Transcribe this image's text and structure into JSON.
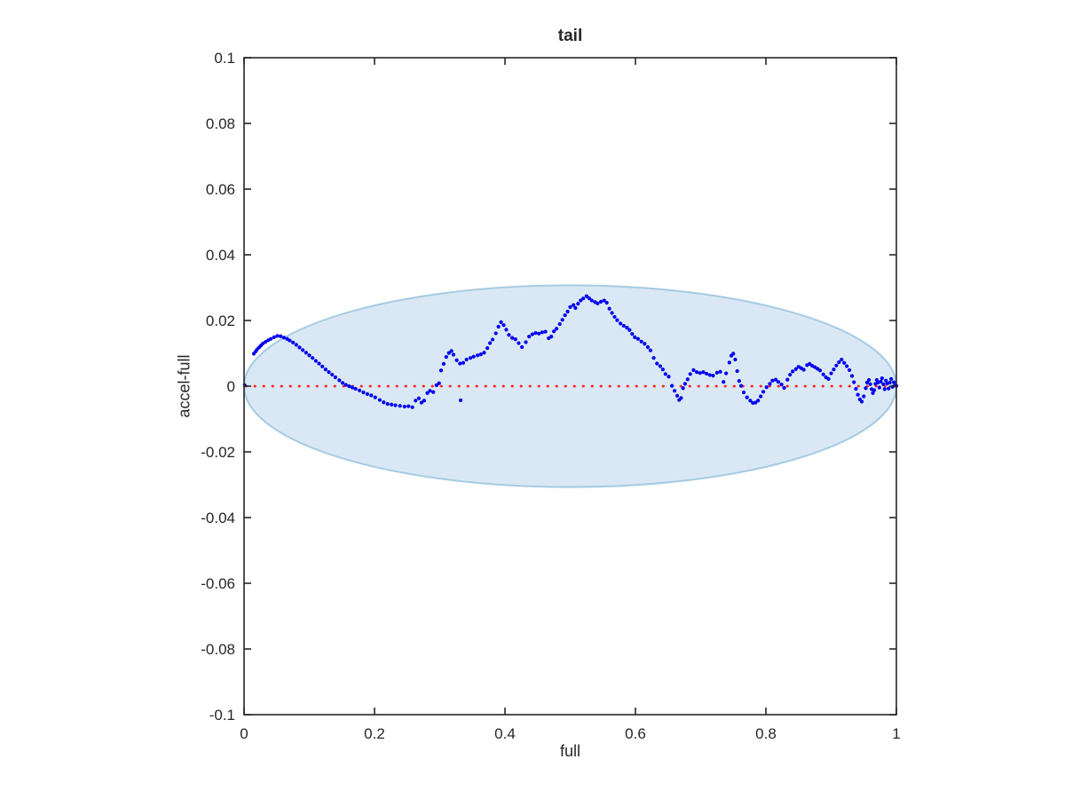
{
  "chart_data": {
    "type": "scatter",
    "title": "tail",
    "xlabel": "full",
    "ylabel": "accel-full",
    "xlim": [
      0,
      1
    ],
    "ylim": [
      -0.1,
      0.1
    ],
    "grid": false,
    "box": true,
    "axis_color": "#262626",
    "legend_position": "none",
    "xticks": {
      "values": [
        0,
        0.2,
        0.4,
        0.6,
        0.8,
        1
      ],
      "labels": [
        "0",
        "0.2",
        "0.4",
        "0.6",
        "0.8",
        "1"
      ]
    },
    "yticks": {
      "values": [
        0.1,
        0.08,
        0.06,
        0.04,
        0.02,
        0,
        -0.02,
        -0.04,
        -0.06,
        -0.08,
        -0.1
      ],
      "labels": [
        "0.1",
        "0.08",
        "0.06",
        "0.04",
        "0.02",
        "0",
        "-0.02",
        "-0.04",
        "-0.06",
        "-0.08",
        "-0.1"
      ]
    },
    "ellipse": {
      "cx": 0.5,
      "cy": 0,
      "rx": 0.5,
      "ry": 0.0307,
      "fill": "#d9e8f4",
      "stroke": "#a6cbe3",
      "stroke_width": 2
    },
    "zero_line": {
      "y": 0,
      "color": "#ff2222",
      "style": "dotted"
    },
    "series": [
      {
        "name": "accel-full",
        "marker": "point",
        "color": "#0000f0",
        "points": [
          [
            0.001,
            0.0003
          ],
          [
            0.015,
            0.0099
          ],
          [
            0.018,
            0.0106
          ],
          [
            0.02,
            0.0112
          ],
          [
            0.023,
            0.0118
          ],
          [
            0.026,
            0.0124
          ],
          [
            0.029,
            0.013
          ],
          [
            0.033,
            0.0135
          ],
          [
            0.037,
            0.014
          ],
          [
            0.041,
            0.0144
          ],
          [
            0.046,
            0.0149
          ],
          [
            0.051,
            0.0153
          ],
          [
            0.056,
            0.0152
          ],
          [
            0.061,
            0.0148
          ],
          [
            0.066,
            0.0144
          ],
          [
            0.07,
            0.0139
          ],
          [
            0.075,
            0.0133
          ],
          [
            0.08,
            0.0126
          ],
          [
            0.085,
            0.0118
          ],
          [
            0.09,
            0.011
          ],
          [
            0.095,
            0.0102
          ],
          [
            0.1,
            0.0094
          ],
          [
            0.105,
            0.0086
          ],
          [
            0.11,
            0.0077
          ],
          [
            0.115,
            0.0069
          ],
          [
            0.12,
            0.006
          ],
          [
            0.125,
            0.0051
          ],
          [
            0.13,
            0.0043
          ],
          [
            0.135,
            0.0035
          ],
          [
            0.14,
            0.0027
          ],
          [
            0.146,
            0.0018
          ],
          [
            0.151,
            0.001
          ],
          [
            0.156,
            0.0004
          ],
          [
            0.161,
            0.0
          ],
          [
            0.166,
            -0.0004
          ],
          [
            0.171,
            -0.0008
          ],
          [
            0.177,
            -0.0013
          ],
          [
            0.183,
            -0.0019
          ],
          [
            0.189,
            -0.0024
          ],
          [
            0.195,
            -0.0028
          ],
          [
            0.201,
            -0.0034
          ],
          [
            0.208,
            -0.0042
          ],
          [
            0.214,
            -0.0049
          ],
          [
            0.22,
            -0.0054
          ],
          [
            0.226,
            -0.0056
          ],
          [
            0.232,
            -0.0058
          ],
          [
            0.239,
            -0.006
          ],
          [
            0.246,
            -0.0062
          ],
          [
            0.252,
            -0.0061
          ],
          [
            0.258,
            -0.0064
          ],
          [
            0.263,
            -0.0044
          ],
          [
            0.268,
            -0.0037
          ],
          [
            0.272,
            -0.005
          ],
          [
            0.276,
            -0.0044
          ],
          [
            0.281,
            -0.0021
          ],
          [
            0.285,
            -0.0014
          ],
          [
            0.29,
            -0.0018
          ],
          [
            0.295,
            0.0003
          ],
          [
            0.299,
            0.0009
          ],
          [
            0.302,
            0.0048
          ],
          [
            0.306,
            0.0068
          ],
          [
            0.31,
            0.0089
          ],
          [
            0.314,
            0.0101
          ],
          [
            0.318,
            0.0107
          ],
          [
            0.321,
            0.0096
          ],
          [
            0.326,
            0.0079
          ],
          [
            0.331,
            0.0069
          ],
          [
            0.332,
            -0.0043
          ],
          [
            0.336,
            0.0071
          ],
          [
            0.341,
            0.0081
          ],
          [
            0.347,
            0.0086
          ],
          [
            0.352,
            0.009
          ],
          [
            0.358,
            0.0094
          ],
          [
            0.363,
            0.0097
          ],
          [
            0.368,
            0.0102
          ],
          [
            0.373,
            0.0116
          ],
          [
            0.377,
            0.0131
          ],
          [
            0.381,
            0.0142
          ],
          [
            0.386,
            0.0161
          ],
          [
            0.39,
            0.0181
          ],
          [
            0.394,
            0.0195
          ],
          [
            0.398,
            0.0186
          ],
          [
            0.402,
            0.0172
          ],
          [
            0.406,
            0.0156
          ],
          [
            0.411,
            0.0147
          ],
          [
            0.416,
            0.0143
          ],
          [
            0.421,
            0.0131
          ],
          [
            0.426,
            0.0119
          ],
          [
            0.432,
            0.0134
          ],
          [
            0.437,
            0.0151
          ],
          [
            0.442,
            0.0158
          ],
          [
            0.447,
            0.0162
          ],
          [
            0.452,
            0.016
          ],
          [
            0.457,
            0.0164
          ],
          [
            0.462,
            0.0166
          ],
          [
            0.467,
            0.0146
          ],
          [
            0.471,
            0.0151
          ],
          [
            0.475,
            0.0167
          ],
          [
            0.479,
            0.0175
          ],
          [
            0.484,
            0.0189
          ],
          [
            0.488,
            0.0202
          ],
          [
            0.492,
            0.0216
          ],
          [
            0.496,
            0.0227
          ],
          [
            0.5,
            0.0241
          ],
          [
            0.505,
            0.0247
          ],
          [
            0.508,
            0.0238
          ],
          [
            0.512,
            0.0251
          ],
          [
            0.516,
            0.0261
          ],
          [
            0.52,
            0.0267
          ],
          [
            0.525,
            0.0274
          ],
          [
            0.529,
            0.0268
          ],
          [
            0.533,
            0.0261
          ],
          [
            0.538,
            0.0256
          ],
          [
            0.542,
            0.0252
          ],
          [
            0.547,
            0.0257
          ],
          [
            0.552,
            0.0261
          ],
          [
            0.556,
            0.0254
          ],
          [
            0.56,
            0.0236
          ],
          [
            0.564,
            0.0223
          ],
          [
            0.568,
            0.0211
          ],
          [
            0.572,
            0.0201
          ],
          [
            0.577,
            0.0191
          ],
          [
            0.582,
            0.0184
          ],
          [
            0.587,
            0.0178
          ],
          [
            0.591,
            0.0171
          ],
          [
            0.595,
            0.0159
          ],
          [
            0.599,
            0.0149
          ],
          [
            0.604,
            0.0144
          ],
          [
            0.609,
            0.0136
          ],
          [
            0.614,
            0.0129
          ],
          [
            0.619,
            0.0119
          ],
          [
            0.623,
            0.0109
          ],
          [
            0.628,
            0.0086
          ],
          [
            0.633,
            0.0069
          ],
          [
            0.638,
            0.0061
          ],
          [
            0.642,
            0.0051
          ],
          [
            0.646,
            0.0037
          ],
          [
            0.651,
            0.0029
          ],
          [
            0.656,
            0.0001
          ],
          [
            0.66,
            -0.0014
          ],
          [
            0.664,
            -0.0029
          ],
          [
            0.667,
            -0.0042
          ],
          [
            0.67,
            -0.0036
          ],
          [
            0.673,
            -0.0006
          ],
          [
            0.676,
            0.0007
          ],
          [
            0.68,
            0.0021
          ],
          [
            0.684,
            0.0037
          ],
          [
            0.689,
            0.0049
          ],
          [
            0.694,
            0.0043
          ],
          [
            0.699,
            0.004
          ],
          [
            0.704,
            0.0043
          ],
          [
            0.709,
            0.0038
          ],
          [
            0.714,
            0.0034
          ],
          [
            0.719,
            0.0032
          ],
          [
            0.725,
            0.0041
          ],
          [
            0.73,
            0.0044
          ],
          [
            0.735,
            0.0013
          ],
          [
            0.739,
            0.0039
          ],
          [
            0.744,
            0.0072
          ],
          [
            0.747,
            0.0093
          ],
          [
            0.75,
            0.0099
          ],
          [
            0.753,
            0.0081
          ],
          [
            0.756,
            0.0046
          ],
          [
            0.759,
            0.0016
          ],
          [
            0.762,
            0.0001
          ],
          [
            0.766,
            -0.0019
          ],
          [
            0.771,
            -0.0034
          ],
          [
            0.776,
            -0.0044
          ],
          [
            0.78,
            -0.0051
          ],
          [
            0.784,
            -0.005
          ],
          [
            0.788,
            -0.0044
          ],
          [
            0.792,
            -0.0031
          ],
          [
            0.796,
            -0.0017
          ],
          [
            0.801,
            -0.0003
          ],
          [
            0.806,
            0.0007
          ],
          [
            0.81,
            0.0017
          ],
          [
            0.815,
            0.002
          ],
          [
            0.819,
            0.0013
          ],
          [
            0.824,
            0.0005
          ],
          [
            0.828,
            -0.0005
          ],
          [
            0.833,
            0.002
          ],
          [
            0.837,
            0.0035
          ],
          [
            0.841,
            0.0045
          ],
          [
            0.846,
            0.0052
          ],
          [
            0.85,
            0.0059
          ],
          [
            0.854,
            0.0055
          ],
          [
            0.858,
            0.005
          ],
          [
            0.863,
            0.0064
          ],
          [
            0.867,
            0.0068
          ],
          [
            0.871,
            0.0062
          ],
          [
            0.875,
            0.0058
          ],
          [
            0.879,
            0.0053
          ],
          [
            0.883,
            0.0048
          ],
          [
            0.888,
            0.0036
          ],
          [
            0.892,
            0.0027
          ],
          [
            0.896,
            0.0022
          ],
          [
            0.9,
            0.0039
          ],
          [
            0.904,
            0.0051
          ],
          [
            0.908,
            0.0063
          ],
          [
            0.912,
            0.0073
          ],
          [
            0.916,
            0.0081
          ],
          [
            0.92,
            0.0071
          ],
          [
            0.924,
            0.0061
          ],
          [
            0.928,
            0.0049
          ],
          [
            0.932,
            0.0031
          ],
          [
            0.935,
            0.0012
          ],
          [
            0.938,
            -0.0008
          ],
          [
            0.941,
            -0.0026
          ],
          [
            0.944,
            -0.004
          ],
          [
            0.947,
            -0.0047
          ],
          [
            0.95,
            -0.0031
          ],
          [
            0.953,
            -0.0006
          ],
          [
            0.955,
            0.0011
          ],
          [
            0.958,
            0.0019
          ],
          [
            0.96,
            0.0006
          ],
          [
            0.962,
            -0.0009
          ],
          [
            0.964,
            -0.0021
          ],
          [
            0.966,
            -0.0012
          ],
          [
            0.968,
            0.0007
          ],
          [
            0.97,
            0.0019
          ],
          [
            0.972,
            0.0011
          ],
          [
            0.974,
            -0.0004
          ],
          [
            0.976,
            0.0014
          ],
          [
            0.978,
            0.0024
          ],
          [
            0.98,
            0.0006
          ],
          [
            0.982,
            -0.0009
          ],
          [
            0.984,
            0.0017
          ],
          [
            0.986,
            0.0008
          ],
          [
            0.988,
            -0.0007
          ],
          [
            0.99,
            0.0011
          ],
          [
            0.992,
            0.0022
          ],
          [
            0.994,
            -0.0002
          ],
          [
            0.996,
            0.0012
          ],
          [
            0.998,
            0.0003
          ],
          [
            1.0,
            0.0001
          ]
        ]
      }
    ]
  }
}
